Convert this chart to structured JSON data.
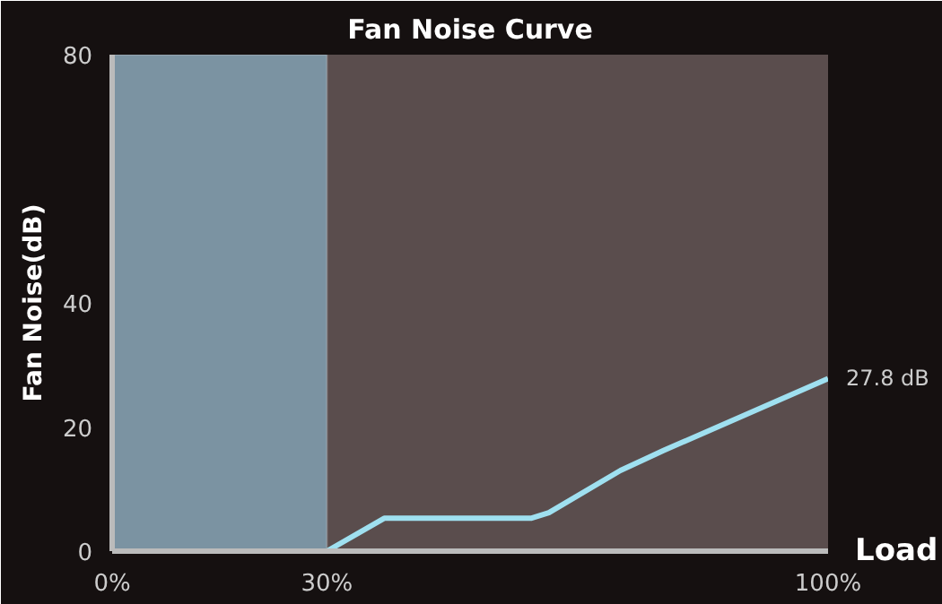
{
  "chart_data": {
    "type": "line",
    "title": "Fan Noise Curve",
    "xlabel": "Load",
    "ylabel": "Fan Noise(dB)",
    "x": [
      0,
      30,
      38,
      58.5,
      61,
      71,
      77,
      100
    ],
    "series": [
      {
        "color": "#9fe0f0",
        "values": [
          0,
          0,
          5.3,
          5.3,
          6.2,
          13,
          16.2,
          27.8
        ],
        "value_labels": [
          null,
          null,
          null,
          null,
          null,
          null,
          null,
          "27.8 dB"
        ]
      }
    ],
    "xlim": [
      0,
      100
    ],
    "ylim": [
      0,
      80
    ],
    "xticks": [
      {
        "value": 0,
        "label": "0%"
      },
      {
        "value": 30,
        "label": "30%"
      },
      {
        "value": 100,
        "label": "100%"
      }
    ],
    "yticks": [
      0,
      20,
      40,
      80
    ],
    "bands": [
      {
        "axis": "x",
        "from": 0,
        "to": 30,
        "color": "#7b93a2"
      }
    ],
    "grid": false,
    "marker": "none",
    "line_style": "solid"
  }
}
